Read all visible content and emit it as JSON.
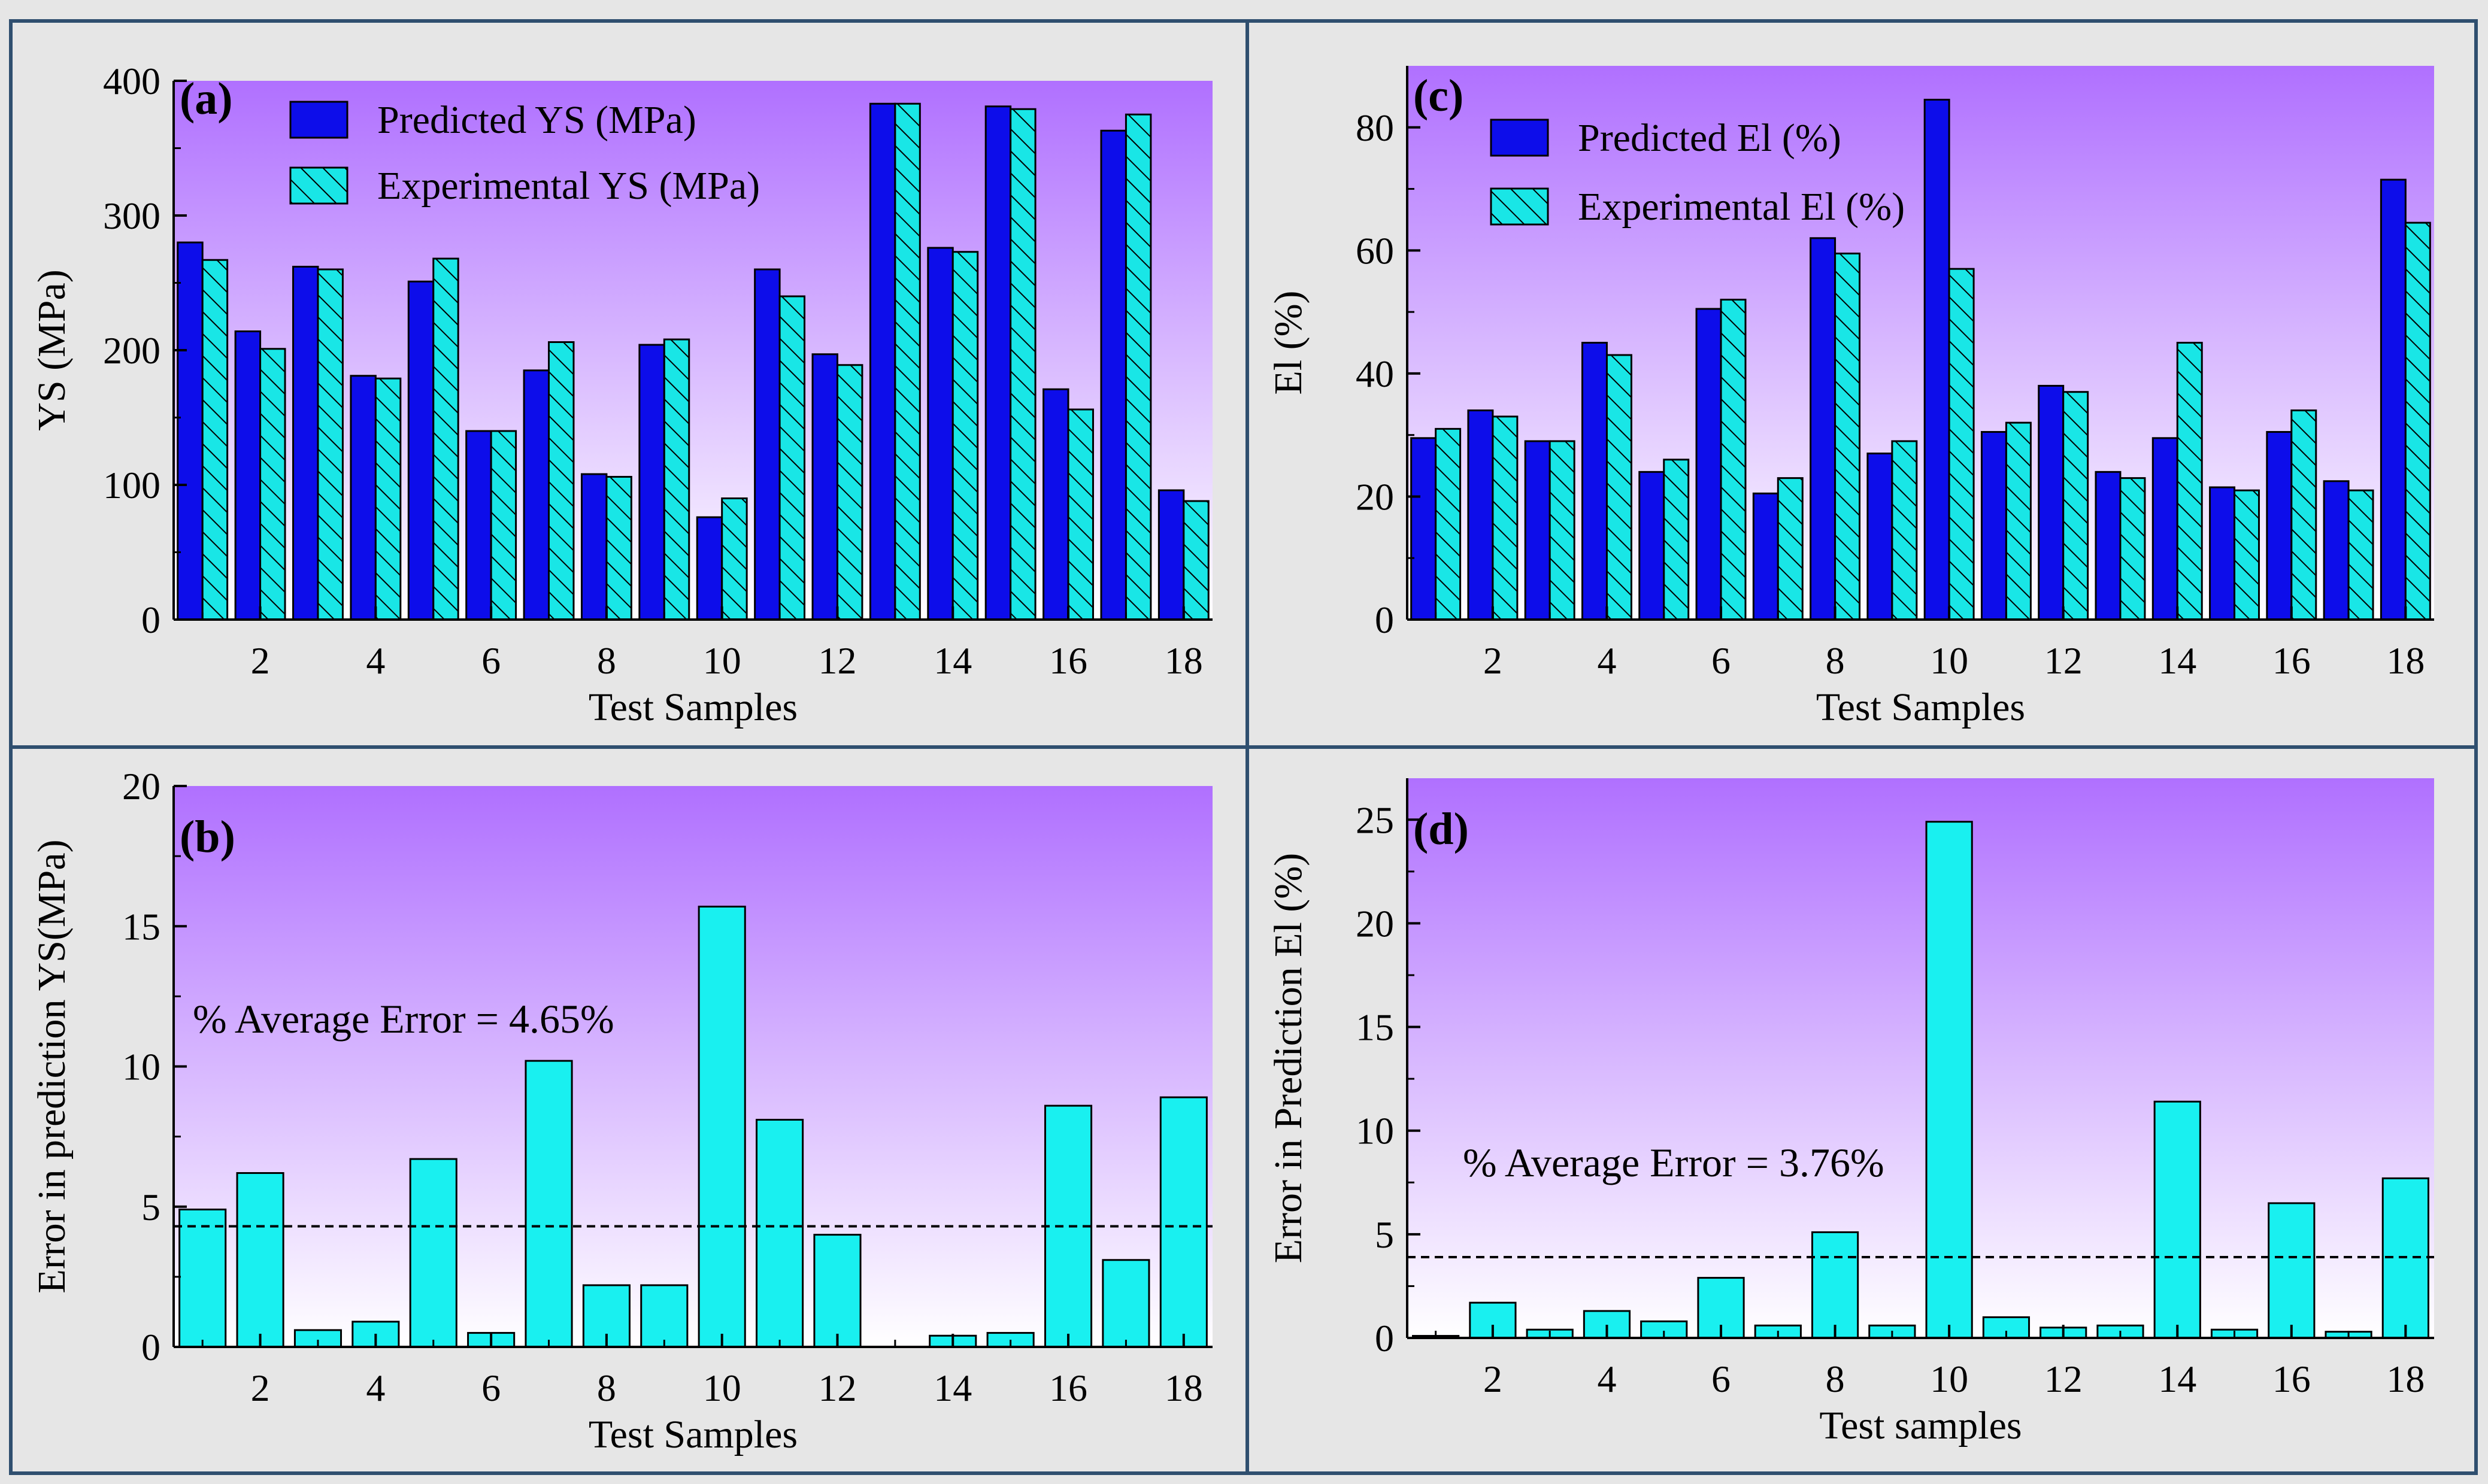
{
  "colors": {
    "panel_bg": "#e6e6e6",
    "frame": "#2f4f6f",
    "gradient_top": "#b070ff",
    "gradient_bottom": "#ffffff",
    "predicted_fill": "#0d0dea",
    "experimental_fill": "#19e6e6",
    "error_fill": "#19f0f0",
    "axis": "#000000"
  },
  "chart_data": [
    {
      "id": "a",
      "type": "bar",
      "panel_label": "(a)",
      "xlabel": "Test Samples",
      "ylabel": "YS (MPa)",
      "ylim": [
        0,
        400
      ],
      "yticks": [
        0,
        100,
        200,
        300,
        400
      ],
      "x": [
        1,
        2,
        3,
        4,
        5,
        6,
        7,
        8,
        9,
        10,
        11,
        12,
        13,
        14,
        15,
        16,
        17,
        18
      ],
      "xticks": [
        2,
        4,
        6,
        8,
        10,
        12,
        14,
        16,
        18
      ],
      "legend_position": "top-left",
      "series": [
        {
          "name": "Predicted YS (MPa)",
          "style": "solid",
          "values": [
            280,
            214,
            262,
            181,
            251,
            140,
            185,
            108,
            204,
            76,
            260,
            197,
            383,
            276,
            381,
            171,
            363,
            96
          ]
        },
        {
          "name": "Experimental YS (MPa)",
          "style": "hatched",
          "values": [
            267,
            201,
            260,
            179,
            268,
            140,
            206,
            106,
            208,
            90,
            240,
            189,
            383,
            273,
            379,
            156,
            375,
            88
          ]
        }
      ]
    },
    {
      "id": "b",
      "type": "bar",
      "panel_label": "(b)",
      "xlabel": "Test Samples",
      "ylabel": "Error in prediction YS(MPa)",
      "ylim": [
        0,
        20
      ],
      "yticks": [
        0,
        5,
        10,
        15,
        20
      ],
      "x": [
        1,
        2,
        3,
        4,
        5,
        6,
        7,
        8,
        9,
        10,
        11,
        12,
        13,
        14,
        15,
        16,
        17,
        18
      ],
      "xticks": [
        2,
        4,
        6,
        8,
        10,
        12,
        14,
        16,
        18
      ],
      "series": [
        {
          "name": "Error",
          "style": "solid",
          "values": [
            4.9,
            6.2,
            0.6,
            0.9,
            6.7,
            0.5,
            10.2,
            2.2,
            2.2,
            15.7,
            8.1,
            4.0,
            0.0,
            0.4,
            0.5,
            8.6,
            3.1,
            8.9
          ]
        }
      ],
      "reference_line": 4.3,
      "annotation": "% Average Error = 4.65%"
    },
    {
      "id": "c",
      "type": "bar",
      "panel_label": "(c)",
      "xlabel": "Test Samples",
      "ylabel": "El (%)",
      "ylim": [
        0,
        90
      ],
      "yticks": [
        0,
        20,
        40,
        60,
        80
      ],
      "x": [
        1,
        2,
        3,
        4,
        5,
        6,
        7,
        8,
        9,
        10,
        11,
        12,
        13,
        14,
        15,
        16,
        17,
        18
      ],
      "xticks": [
        2,
        4,
        6,
        8,
        10,
        12,
        14,
        16,
        18
      ],
      "legend_position": "top-left",
      "series": [
        {
          "name": "Predicted El (%)",
          "style": "solid",
          "values": [
            29.5,
            34.0,
            29.0,
            45.0,
            24.0,
            50.5,
            20.5,
            62.0,
            27.0,
            84.5,
            30.5,
            38.0,
            24.0,
            29.5,
            21.5,
            30.5,
            22.5,
            71.5
          ]
        },
        {
          "name": "Experimental El (%)",
          "style": "hatched",
          "values": [
            31.0,
            33.0,
            29.0,
            43.0,
            26.0,
            52.0,
            23.0,
            59.5,
            29.0,
            57.0,
            32.0,
            37.0,
            23.0,
            45.0,
            21.0,
            34.0,
            21.0,
            64.5
          ]
        }
      ]
    },
    {
      "id": "d",
      "type": "bar",
      "panel_label": "(d)",
      "xlabel": "Test samples",
      "ylabel": "Error in Prediction El (%)",
      "ylim": [
        0,
        27
      ],
      "yticks": [
        0,
        5,
        10,
        15,
        20,
        25
      ],
      "x": [
        1,
        2,
        3,
        4,
        5,
        6,
        7,
        8,
        9,
        10,
        11,
        12,
        13,
        14,
        15,
        16,
        17,
        18
      ],
      "xticks": [
        2,
        4,
        6,
        8,
        10,
        12,
        14,
        16,
        18
      ],
      "series": [
        {
          "name": "Error",
          "style": "solid",
          "values": [
            0.1,
            1.7,
            0.4,
            1.3,
            0.8,
            2.9,
            0.6,
            5.1,
            0.6,
            24.9,
            1.0,
            0.5,
            0.6,
            11.4,
            0.4,
            6.5,
            0.3,
            7.7
          ]
        }
      ],
      "reference_line": 3.9,
      "annotation": "% Average Error = 3.76%"
    }
  ]
}
